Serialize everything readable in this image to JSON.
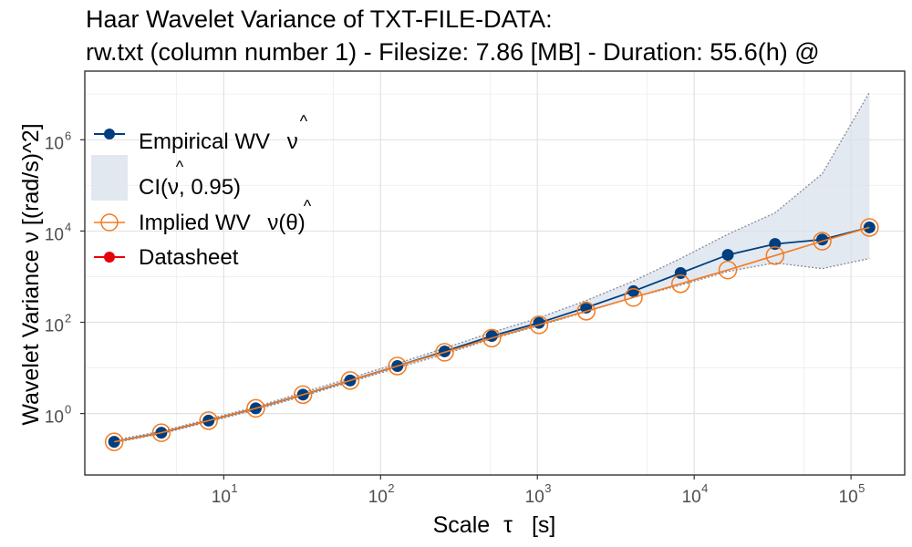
{
  "chart_data": {
    "type": "line",
    "title_line1": "Haar Wavelet Variance of TXT-FILE-DATA:",
    "title_line2": "rw.txt (column number 1) - Filesize: 7.86 [MB] - Duration: 55.6(h) @",
    "xlabel_main": "Scale",
    "xlabel_symbol": "τ",
    "xlabel_unit": "[s]",
    "ylabel": "Wavelet Variance ν [(rad/s)^2]",
    "x_scale": "log10",
    "y_scale": "log10",
    "xlim": [
      1.3,
      220000
    ],
    "ylim": [
      0.045,
      32000000
    ],
    "x_ticks": [
      {
        "value": 10,
        "base": "10",
        "exp": "1"
      },
      {
        "value": 100,
        "base": "10",
        "exp": "2"
      },
      {
        "value": 1000,
        "base": "10",
        "exp": "3"
      },
      {
        "value": 10000,
        "base": "10",
        "exp": "4"
      },
      {
        "value": 100000,
        "base": "10",
        "exp": "5"
      }
    ],
    "y_ticks": [
      {
        "value": 1,
        "base": "10",
        "exp": "0"
      },
      {
        "value": 100,
        "base": "10",
        "exp": "2"
      },
      {
        "value": 10000,
        "base": "10",
        "exp": "4"
      },
      {
        "value": 1000000,
        "base": "10",
        "exp": "6"
      }
    ],
    "grid": true,
    "legend_position": "top-left",
    "colors": {
      "empirical": "#003F7F",
      "implied": "#F57A1E",
      "datasheet": "#E8000B",
      "ci_fill": "#D9E1EC",
      "ci_border": "#8A8A9A"
    },
    "legend": [
      {
        "key": "empirical",
        "label": "Empirical WV",
        "symbol": "ν",
        "hat": "^"
      },
      {
        "key": "ci",
        "label": "CI(ν, 0.95)",
        "hat": "^"
      },
      {
        "key": "implied",
        "label": "Implied WV",
        "symbol": "ν(θ)",
        "hat": "^"
      },
      {
        "key": "datasheet",
        "label": "Datasheet"
      }
    ],
    "x": [
      2,
      4,
      8,
      16,
      32,
      64,
      128,
      256,
      512,
      1024,
      2048,
      4096,
      8192,
      16384,
      32768,
      65536,
      131072
    ],
    "series": [
      {
        "key": "empirical",
        "values": [
          0.24,
          0.38,
          0.7,
          1.3,
          2.6,
          5.3,
          11,
          23,
          50,
          97,
          210,
          480,
          1200,
          3000,
          5200,
          6500,
          12000
        ]
      },
      {
        "key": "implied",
        "values": [
          0.24,
          0.38,
          0.7,
          1.3,
          2.6,
          5.3,
          11,
          22,
          45,
          88,
          175,
          350,
          700,
          1400,
          2900,
          6000,
          12000
        ]
      }
    ],
    "ci": {
      "lower": [
        0.23,
        0.36,
        0.66,
        1.2,
        2.4,
        4.9,
        10,
        20,
        43,
        84,
        170,
        350,
        650,
        1300,
        2000,
        1500,
        2500
      ],
      "upper": [
        0.26,
        0.41,
        0.75,
        1.4,
        2.9,
        6,
        12.5,
        27,
        60,
        125,
        300,
        800,
        2500,
        8500,
        25000,
        180000,
        11000000
      ]
    }
  }
}
